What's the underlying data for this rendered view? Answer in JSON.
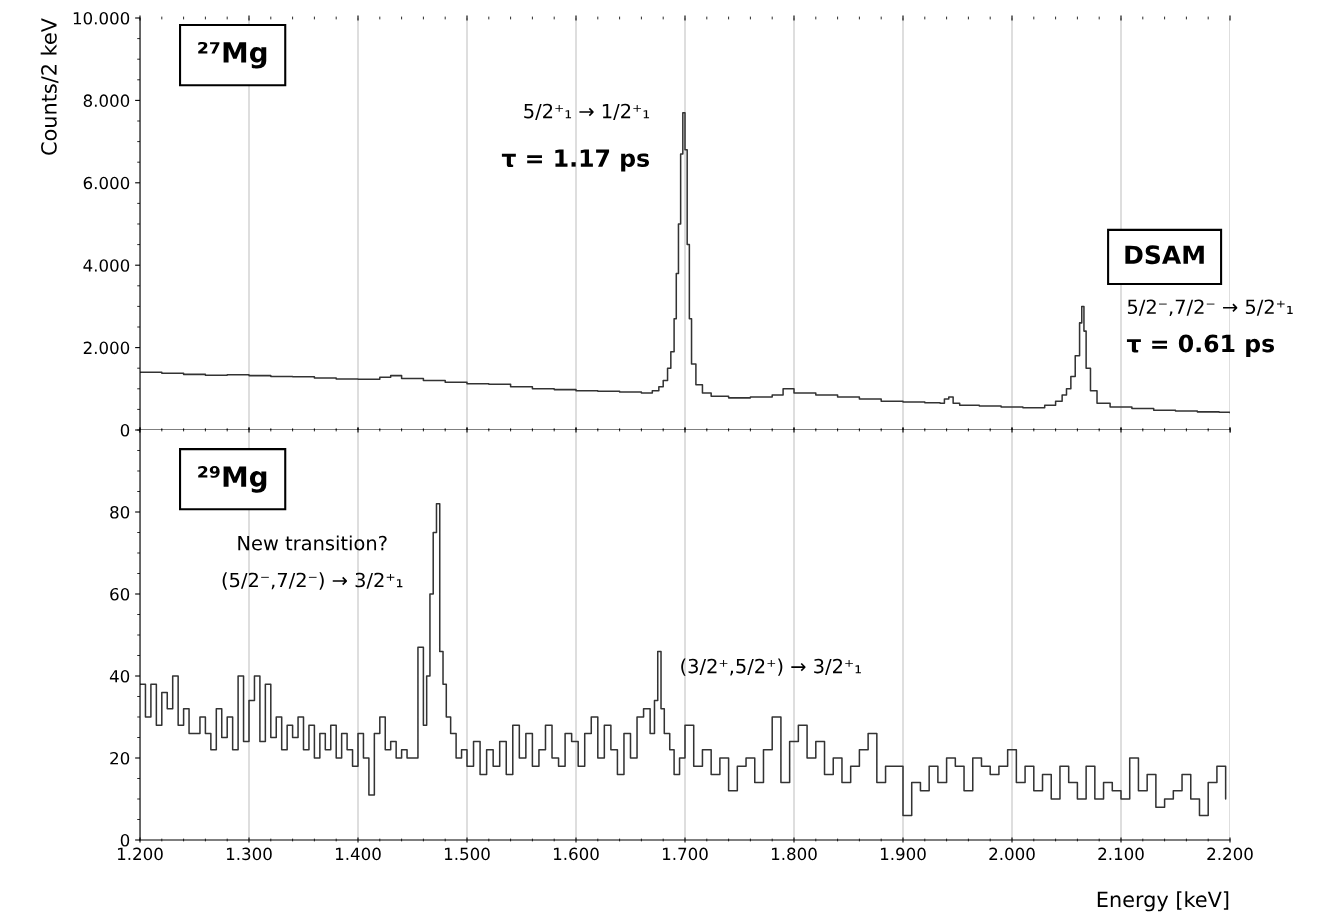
{
  "chart_data": [
    {
      "type": "step",
      "ylabel": "Counts/2 keV",
      "tick_labels": "y",
      "grid": "x",
      "color": "#333333",
      "x": [
        1.2,
        1.22,
        1.24,
        1.26,
        1.28,
        1.3,
        1.32,
        1.34,
        1.36,
        1.38,
        1.4,
        1.42,
        1.43,
        1.44,
        1.46,
        1.48,
        1.5,
        1.52,
        1.54,
        1.56,
        1.58,
        1.6,
        1.62,
        1.64,
        1.66,
        1.67,
        1.676,
        1.68,
        1.684,
        1.687,
        1.69,
        1.692,
        1.694,
        1.696,
        1.698,
        1.7,
        1.702,
        1.704,
        1.706,
        1.71,
        1.716,
        1.724,
        1.74,
        1.76,
        1.78,
        1.79,
        1.8,
        1.82,
        1.84,
        1.86,
        1.88,
        1.9,
        1.92,
        1.934,
        1.938,
        1.942,
        1.946,
        1.952,
        1.97,
        1.99,
        2.01,
        2.03,
        2.04,
        2.046,
        2.05,
        2.054,
        2.058,
        2.062,
        2.064,
        2.066,
        2.068,
        2.072,
        2.078,
        2.09,
        2.11,
        2.13,
        2.15,
        2.17,
        2.19,
        2.2
      ],
      "values": [
        1.4,
        1.38,
        1.35,
        1.33,
        1.34,
        1.32,
        1.3,
        1.29,
        1.26,
        1.24,
        1.23,
        1.28,
        1.32,
        1.25,
        1.2,
        1.16,
        1.12,
        1.11,
        1.05,
        1.0,
        0.98,
        0.95,
        0.94,
        0.92,
        0.9,
        0.95,
        1.05,
        1.2,
        1.5,
        1.9,
        2.7,
        3.8,
        5.0,
        6.7,
        7.7,
        6.8,
        4.5,
        2.7,
        1.6,
        1.1,
        0.9,
        0.82,
        0.78,
        0.8,
        0.85,
        1.0,
        0.9,
        0.85,
        0.8,
        0.75,
        0.7,
        0.68,
        0.66,
        0.65,
        0.75,
        0.8,
        0.65,
        0.6,
        0.58,
        0.56,
        0.54,
        0.6,
        0.7,
        0.85,
        1.0,
        1.3,
        1.8,
        2.6,
        3.0,
        2.4,
        1.5,
        0.95,
        0.65,
        0.56,
        0.52,
        0.48,
        0.46,
        0.44,
        0.43,
        0.42
      ],
      "xlim": [
        1.2,
        2.2
      ],
      "ylim": [
        0,
        10
      ],
      "xticks": [
        1.2,
        1.3,
        1.4,
        1.5,
        1.6,
        1.7,
        1.8,
        1.9,
        2.0,
        2.1,
        2.2
      ],
      "yticks": [
        0,
        {
          "value": 2,
          "label": "2.000"
        },
        {
          "value": 4,
          "label": "4.000"
        },
        {
          "value": 6,
          "label": "6.000"
        },
        {
          "value": 8,
          "label": "8.000"
        },
        {
          "value": 10,
          "label": "10.000"
        }
      ],
      "annotations": [
        "²⁷Mg",
        "5/2⁺₁ → 1/2⁺₁",
        "τ = 1.17 ps",
        "DSAM",
        "5/2⁻,7/2⁻ → 5/2⁺₁",
        "τ = 0.61 ps"
      ]
    },
    {
      "type": "step",
      "xlabel": "Energy [keV]",
      "grid": "x",
      "color": "#333333",
      "x": [
        1.2,
        1.205,
        1.21,
        1.215,
        1.22,
        1.225,
        1.23,
        1.235,
        1.24,
        1.245,
        1.25,
        1.255,
        1.26,
        1.265,
        1.27,
        1.275,
        1.28,
        1.285,
        1.29,
        1.295,
        1.3,
        1.305,
        1.31,
        1.315,
        1.32,
        1.325,
        1.33,
        1.335,
        1.34,
        1.345,
        1.35,
        1.355,
        1.36,
        1.365,
        1.37,
        1.375,
        1.38,
        1.385,
        1.39,
        1.395,
        1.4,
        1.405,
        1.41,
        1.415,
        1.42,
        1.425,
        1.43,
        1.435,
        1.44,
        1.445,
        1.45,
        1.455,
        1.46,
        1.463,
        1.466,
        1.469,
        1.472,
        1.475,
        1.478,
        1.481,
        1.485,
        1.49,
        1.495,
        1.5,
        1.506,
        1.512,
        1.518,
        1.524,
        1.53,
        1.536,
        1.542,
        1.548,
        1.554,
        1.56,
        1.566,
        1.572,
        1.578,
        1.584,
        1.59,
        1.596,
        1.602,
        1.608,
        1.614,
        1.62,
        1.626,
        1.632,
        1.638,
        1.644,
        1.65,
        1.656,
        1.662,
        1.668,
        1.672,
        1.675,
        1.678,
        1.681,
        1.686,
        1.69,
        1.695,
        1.7,
        1.708,
        1.716,
        1.724,
        1.732,
        1.74,
        1.748,
        1.756,
        1.764,
        1.772,
        1.78,
        1.788,
        1.796,
        1.804,
        1.812,
        1.82,
        1.828,
        1.836,
        1.844,
        1.852,
        1.86,
        1.868,
        1.876,
        1.884,
        1.892,
        1.9,
        1.908,
        1.916,
        1.924,
        1.932,
        1.94,
        1.948,
        1.956,
        1.964,
        1.972,
        1.98,
        1.988,
        1.996,
        2.004,
        2.012,
        2.02,
        2.028,
        2.036,
        2.044,
        2.052,
        2.06,
        2.068,
        2.076,
        2.084,
        2.092,
        2.1,
        2.108,
        2.116,
        2.124,
        2.132,
        2.14,
        2.148,
        2.156,
        2.164,
        2.172,
        2.18,
        2.188,
        2.196
      ],
      "values": [
        38,
        30,
        38,
        28,
        36,
        32,
        40,
        28,
        32,
        26,
        26,
        30,
        26,
        22,
        32,
        25,
        30,
        22,
        40,
        24,
        34,
        40,
        24,
        38,
        25,
        30,
        22,
        28,
        25,
        30,
        22,
        28,
        20,
        26,
        22,
        28,
        20,
        26,
        22,
        18,
        26,
        20,
        11,
        26,
        30,
        22,
        24,
        20,
        22,
        20,
        20,
        47,
        28,
        40,
        60,
        75,
        82,
        46,
        38,
        30,
        26,
        20,
        22,
        18,
        24,
        16,
        22,
        18,
        24,
        16,
        28,
        20,
        26,
        18,
        22,
        28,
        20,
        18,
        26,
        24,
        18,
        26,
        30,
        20,
        28,
        22,
        16,
        26,
        20,
        30,
        32,
        26,
        34,
        46,
        32,
        26,
        22,
        16,
        20,
        28,
        18,
        22,
        16,
        20,
        12,
        18,
        20,
        14,
        22,
        30,
        14,
        24,
        28,
        20,
        24,
        16,
        20,
        14,
        18,
        22,
        26,
        14,
        18,
        18,
        6,
        14,
        12,
        18,
        14,
        20,
        18,
        12,
        20,
        18,
        16,
        18,
        22,
        14,
        18,
        12,
        16,
        10,
        18,
        14,
        10,
        18,
        10,
        14,
        12,
        10,
        20,
        12,
        16,
        8,
        10,
        12,
        16,
        10,
        6,
        14,
        18,
        10
      ],
      "xlim": [
        1.2,
        2.2
      ],
      "ylim": [
        0,
        100
      ],
      "xticks": [
        {
          "value": 1.2,
          "label": "1.200"
        },
        {
          "value": 1.3,
          "label": "1.300"
        },
        {
          "value": 1.4,
          "label": "1.400"
        },
        {
          "value": 1.5,
          "label": "1.500"
        },
        {
          "value": 1.6,
          "label": "1.600"
        },
        {
          "value": 1.7,
          "label": "1.700"
        },
        {
          "value": 1.8,
          "label": "1.800"
        },
        {
          "value": 1.9,
          "label": "1.900"
        },
        {
          "value": 2.0,
          "label": "2.000"
        },
        {
          "value": 2.1,
          "label": "2.100"
        },
        {
          "value": 2.2,
          "label": "2.200"
        }
      ],
      "yticks": [
        0,
        20,
        40,
        60,
        80
      ],
      "annotations": [
        "²⁹Mg",
        "New transition?",
        "(5/2⁻,7/2⁻) → 3/2⁺₁",
        "(3/2⁺,5/2⁺) → 3/2⁺₁"
      ]
    }
  ]
}
